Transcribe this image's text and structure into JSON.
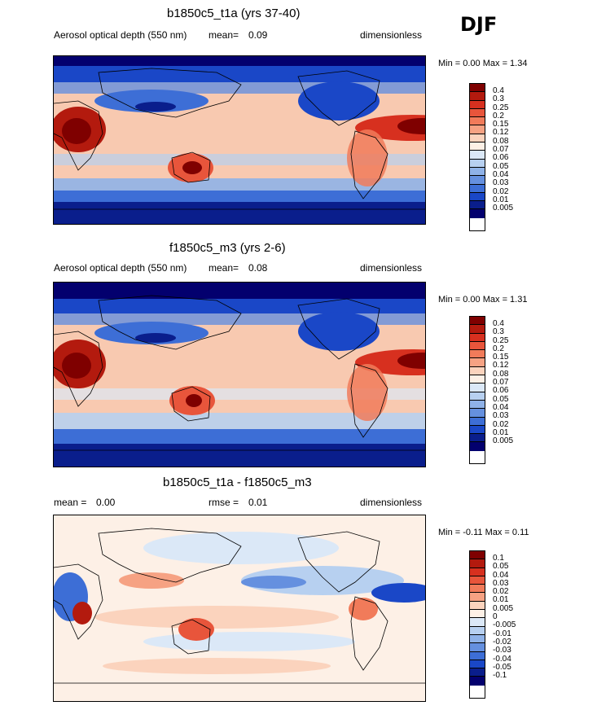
{
  "season": "DJF",
  "panels": [
    {
      "title": "b1850c5_t1a (yrs 37-40)",
      "variable": "Aerosol optical depth (550 nm)",
      "stat_label": "mean=",
      "stat_value": "0.09",
      "units": "dimensionless",
      "minmax": "Min =  0.00 Max =  1.34",
      "levels": [
        "0.4",
        "0.3",
        "0.25",
        "0.2",
        "0.15",
        "0.12",
        "0.08",
        "0.07",
        "0.06",
        "0.05",
        "0.04",
        "0.03",
        "0.02",
        "0.01",
        "0.005"
      ]
    },
    {
      "title": "f1850c5_m3 (yrs 2-6)",
      "variable": "Aerosol optical depth (550 nm)",
      "stat_label": "mean=",
      "stat_value": "0.08",
      "units": "dimensionless",
      "minmax": "Min =  0.00 Max =  1.31",
      "levels": [
        "0.4",
        "0.3",
        "0.25",
        "0.2",
        "0.15",
        "0.12",
        "0.08",
        "0.07",
        "0.06",
        "0.05",
        "0.04",
        "0.03",
        "0.02",
        "0.01",
        "0.005"
      ]
    },
    {
      "title": "b1850c5_t1a - f1850c5_m3",
      "stat_label": "mean =",
      "stat_value": "0.00",
      "stat2_label": "rmse =",
      "stat2_value": "0.01",
      "units": "dimensionless",
      "minmax": "Min =  -0.11 Max =  0.11",
      "levels": [
        "0.1",
        "0.05",
        "0.04",
        "0.03",
        "0.02",
        "0.01",
        "0.005",
        "0",
        "-0.005",
        "-0.01",
        "-0.02",
        "-0.03",
        "-0.04",
        "-0.05",
        "-0.1"
      ]
    }
  ],
  "colors": {
    "scale": [
      "#7f0000",
      "#b31a0e",
      "#d7301f",
      "#e8553b",
      "#f17b5a",
      "#f6a283",
      "#fbd3bd",
      "#fdf0e6",
      "#dbe8f7",
      "#b7d0f0",
      "#8fb2e8",
      "#6590df",
      "#3d6ed6",
      "#1a47c7",
      "#0a1e8c",
      "#03006e"
    ],
    "ocean_mid": "#f9c7ae",
    "land": "#f5b497"
  }
}
